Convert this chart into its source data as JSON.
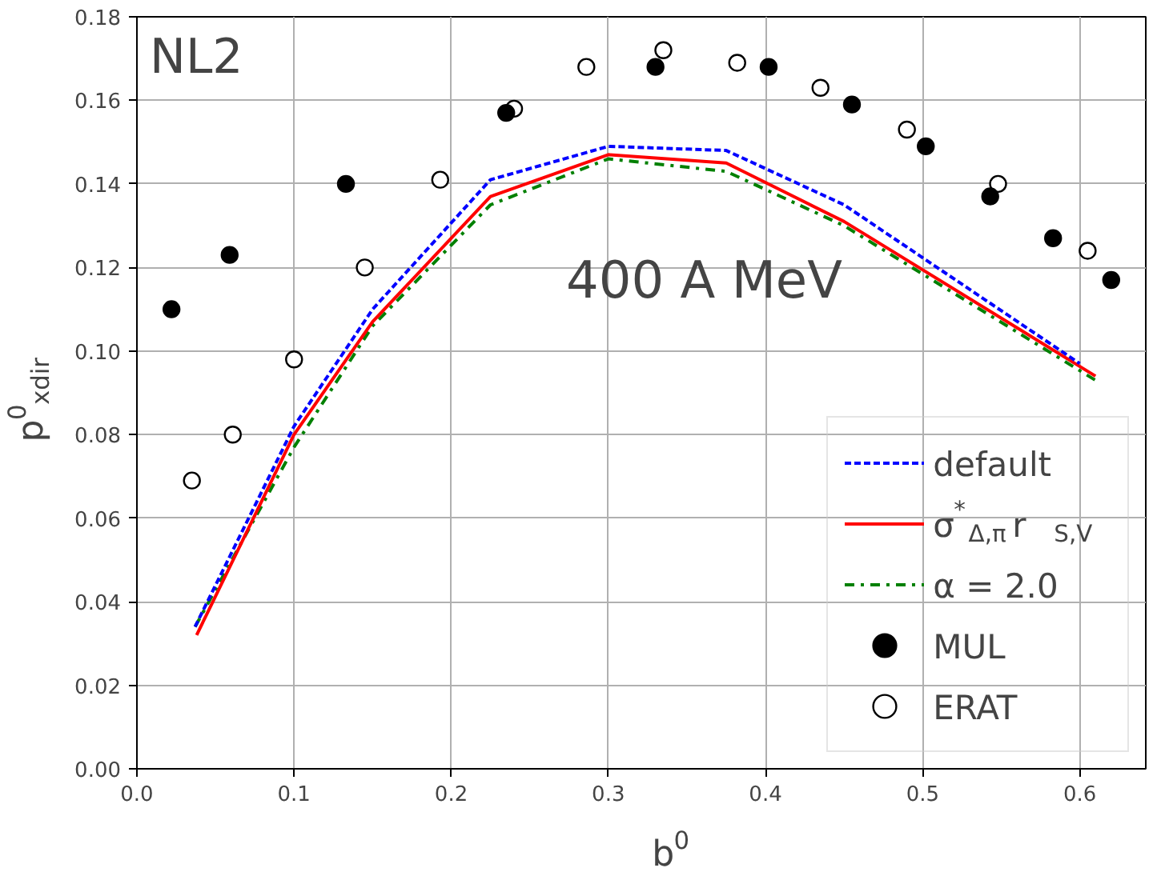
{
  "chart_data": {
    "type": "line",
    "xlabel": "b$^{0}$",
    "ylabel": "p$^{0}$$_{xdir}$",
    "annotations": [
      "NL2",
      "400 A MeV"
    ],
    "xlim": [
      0.0,
      0.642
    ],
    "xticks": [
      {
        "value": 0,
        "label": "0.0"
      },
      0.1,
      0.2,
      0.3,
      0.4,
      0.5,
      0.6
    ],
    "ylim": [
      0.0,
      0.18
    ],
    "yticks": [
      {
        "value": 0,
        "label": "0.00"
      },
      {
        "value": 0.02,
        "label": "0.02"
      },
      {
        "value": 0.04,
        "label": "0.04"
      },
      {
        "value": 0.06,
        "label": "0.06"
      },
      {
        "value": 0.08,
        "label": "0.08"
      },
      {
        "value": 0.1,
        "label": "0.10"
      },
      {
        "value": 0.12,
        "label": "0.12"
      },
      {
        "value": 0.14,
        "label": "0.14"
      },
      {
        "value": 0.16,
        "label": "0.16"
      },
      {
        "value": 0.18,
        "label": "0.18"
      }
    ],
    "grid": true,
    "legend": "bottom right",
    "series": [
      {
        "name": "default",
        "line_style": "dashed",
        "color": "#0000ff",
        "x": [
          0.037,
          0.1,
          0.15,
          0.225,
          0.3,
          0.375,
          0.45,
          0.6
        ],
        "values": [
          0.034,
          0.082,
          0.11,
          0.141,
          0.149,
          0.148,
          0.135,
          0.097
        ]
      },
      {
        "name": "σ$^{*}$$_{Δ,π}$ r$_{S,V}$",
        "line_style": "solid",
        "color": "#ff0000",
        "x": [
          0.038,
          0.1,
          0.15,
          0.225,
          0.3,
          0.375,
          0.45,
          0.61
        ],
        "values": [
          0.032,
          0.08,
          0.107,
          0.137,
          0.147,
          0.145,
          0.131,
          0.094
        ]
      },
      {
        "name": "α = 2.0",
        "line_style": "dashdot",
        "color": "#008000",
        "x": [
          0.037,
          0.1,
          0.15,
          0.225,
          0.3,
          0.375,
          0.45,
          0.61
        ],
        "values": [
          0.034,
          0.077,
          0.106,
          0.135,
          0.146,
          0.143,
          0.13,
          0.093
        ]
      },
      {
        "name": "MUL",
        "type": "scatter",
        "marker": "circle",
        "color": "#000000",
        "x": [
          0.022,
          0.059,
          0.133,
          0.235,
          0.33,
          0.402,
          0.455,
          0.502,
          0.543,
          0.583,
          0.62
        ],
        "values": [
          0.11,
          0.123,
          0.14,
          0.157,
          0.168,
          0.168,
          0.159,
          0.149,
          0.137,
          0.127,
          0.117
        ]
      },
      {
        "name": "ERAT",
        "type": "scatter",
        "marker": "circle_open",
        "color": "#000000",
        "x": [
          0.035,
          0.061,
          0.1,
          0.145,
          0.193,
          0.24,
          0.286,
          0.335,
          0.382,
          0.435,
          0.49,
          0.548,
          0.605
        ],
        "values": [
          0.069,
          0.08,
          0.098,
          0.12,
          0.141,
          0.158,
          0.168,
          0.172,
          0.169,
          0.163,
          0.153,
          0.14,
          0.124
        ]
      }
    ]
  }
}
